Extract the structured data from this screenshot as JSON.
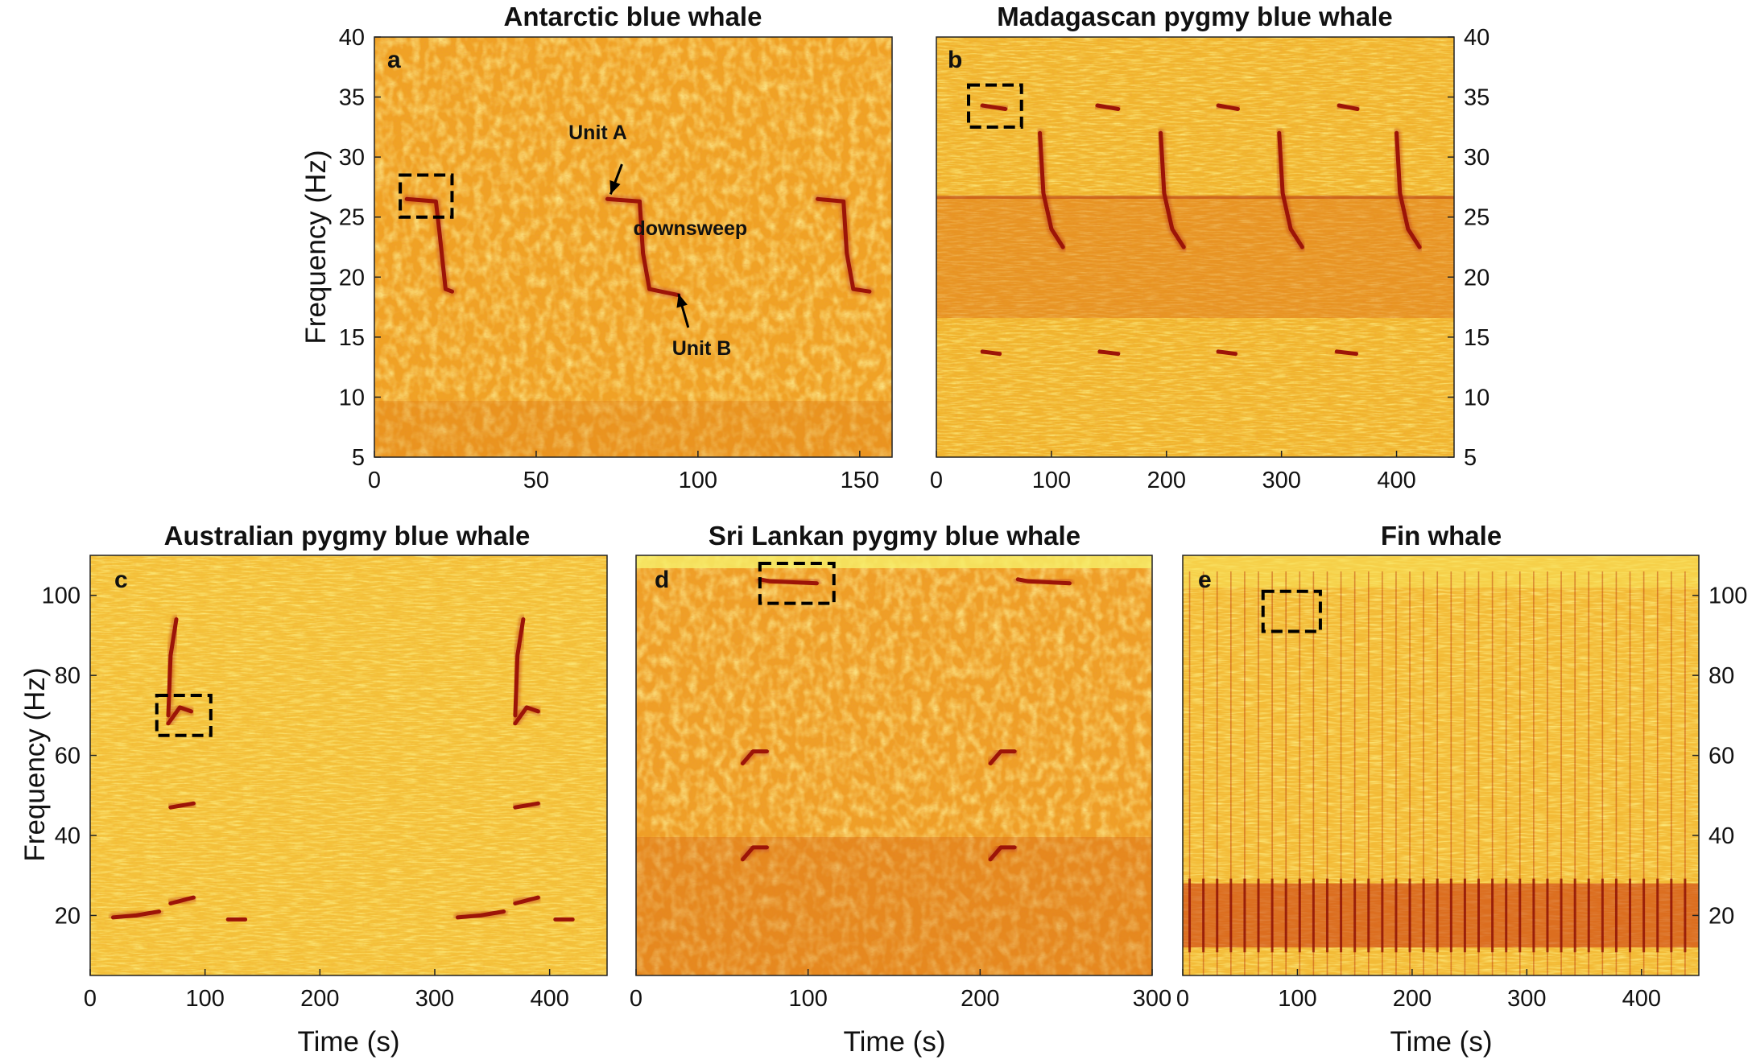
{
  "chart_data": [
    {
      "id": "a",
      "type": "heatmap",
      "panel_label": "a",
      "title": "Antarctic blue whale",
      "xlabel": "",
      "ylabel": "Frequency (Hz)",
      "xlim": [
        0,
        160
      ],
      "ylim": [
        5,
        40
      ],
      "xticks": [
        0,
        50,
        100,
        150
      ],
      "yticks": [
        5,
        10,
        15,
        20,
        25,
        30,
        35,
        40
      ],
      "y_axis_side": "left",
      "calls": [
        {
          "points": [
            [
              10,
              26.5
            ],
            [
              19,
              26.3
            ],
            [
              20,
              24
            ],
            [
              22,
              19
            ],
            [
              24,
              18.8
            ]
          ]
        },
        {
          "points": [
            [
              72,
              26.5
            ],
            [
              82,
              26.3
            ],
            [
              83,
              22
            ],
            [
              85,
              19
            ],
            [
              94,
              18.5
            ]
          ]
        },
        {
          "points": [
            [
              137,
              26.5
            ],
            [
              145,
              26.3
            ],
            [
              146,
              22
            ],
            [
              148,
              19
            ],
            [
              153,
              18.8
            ]
          ]
        }
      ],
      "boxes": [
        {
          "x": [
            8,
            24
          ],
          "y": [
            25,
            28.5
          ]
        }
      ],
      "annotations": [
        {
          "text": "Unit A",
          "x": 60,
          "y": 31.5
        },
        {
          "text": "downsweep",
          "x": 80,
          "y": 23.5
        },
        {
          "text": "Unit B",
          "x": 92,
          "y": 13.5
        }
      ]
    },
    {
      "id": "b",
      "type": "heatmap",
      "panel_label": "b",
      "title": "Madagascan pygmy blue whale",
      "xlabel": "",
      "ylabel": "",
      "xlim": [
        0,
        450
      ],
      "ylim": [
        5,
        40
      ],
      "xticks": [
        0,
        100,
        200,
        300,
        400
      ],
      "yticks": [
        5,
        10,
        15,
        20,
        25,
        30,
        35,
        40
      ],
      "y_axis_side": "right",
      "calls": [
        {
          "points": [
            [
              40,
              34.3
            ],
            [
              60,
              34
            ]
          ]
        },
        {
          "points": [
            [
              140,
              34.3
            ],
            [
              158,
              34
            ]
          ]
        },
        {
          "points": [
            [
              245,
              34.3
            ],
            [
              262,
              34
            ]
          ]
        },
        {
          "points": [
            [
              350,
              34.3
            ],
            [
              366,
              34
            ]
          ]
        },
        {
          "points": [
            [
              90,
              32
            ],
            [
              93,
              27
            ],
            [
              100,
              24
            ],
            [
              110,
              22.5
            ]
          ]
        },
        {
          "points": [
            [
              195,
              32
            ],
            [
              198,
              27
            ],
            [
              205,
              24
            ],
            [
              215,
              22.5
            ]
          ]
        },
        {
          "points": [
            [
              298,
              32
            ],
            [
              301,
              27
            ],
            [
              308,
              24
            ],
            [
              318,
              22.5
            ]
          ]
        },
        {
          "points": [
            [
              400,
              32
            ],
            [
              403,
              27
            ],
            [
              410,
              24
            ],
            [
              420,
              22.5
            ]
          ]
        },
        {
          "points": [
            [
              40,
              13.8
            ],
            [
              55,
              13.6
            ]
          ]
        },
        {
          "points": [
            [
              142,
              13.8
            ],
            [
              158,
              13.6
            ]
          ]
        },
        {
          "points": [
            [
              245,
              13.8
            ],
            [
              260,
              13.6
            ]
          ]
        },
        {
          "points": [
            [
              348,
              13.8
            ],
            [
              365,
              13.6
            ]
          ]
        }
      ],
      "boxes": [
        {
          "x": [
            28,
            74
          ],
          "y": [
            32.5,
            36
          ]
        }
      ]
    },
    {
      "id": "c",
      "type": "heatmap",
      "panel_label": "c",
      "title": "Australian pygmy blue whale",
      "xlabel": "Time (s)",
      "ylabel": "Frequency (Hz)",
      "xlim": [
        0,
        450
      ],
      "ylim": [
        5,
        110
      ],
      "xticks": [
        0,
        100,
        200,
        300,
        400
      ],
      "yticks": [
        20,
        40,
        60,
        80,
        100
      ],
      "y_axis_side": "left",
      "calls": [
        {
          "points": [
            [
              20,
              19.5
            ],
            [
              40,
              20
            ],
            [
              60,
              21
            ]
          ]
        },
        {
          "points": [
            [
              70,
              23
            ],
            [
              90,
              24.5
            ]
          ]
        },
        {
          "points": [
            [
              120,
              19
            ],
            [
              135,
              19
            ]
          ]
        },
        {
          "points": [
            [
              70,
              47
            ],
            [
              90,
              48
            ]
          ]
        },
        {
          "points": [
            [
              68,
              68
            ],
            [
              78,
              72
            ],
            [
              88,
              71
            ]
          ]
        },
        {
          "points": [
            [
              68,
              70
            ],
            [
              70,
              85
            ],
            [
              75,
              94
            ]
          ]
        },
        {
          "points": [
            [
              320,
              19.5
            ],
            [
              340,
              20
            ],
            [
              360,
              21
            ]
          ]
        },
        {
          "points": [
            [
              370,
              23
            ],
            [
              390,
              24.5
            ]
          ]
        },
        {
          "points": [
            [
              405,
              19
            ],
            [
              420,
              19
            ]
          ]
        },
        {
          "points": [
            [
              370,
              47
            ],
            [
              390,
              48
            ]
          ]
        },
        {
          "points": [
            [
              370,
              68
            ],
            [
              380,
              72
            ],
            [
              390,
              71
            ]
          ]
        },
        {
          "points": [
            [
              370,
              70
            ],
            [
              372,
              85
            ],
            [
              377,
              94
            ]
          ]
        }
      ],
      "boxes": [
        {
          "x": [
            58,
            105
          ],
          "y": [
            65,
            75
          ]
        }
      ]
    },
    {
      "id": "d",
      "type": "heatmap",
      "panel_label": "d",
      "title": "Sri Lankan pygmy blue whale",
      "xlabel": "Time (s)",
      "ylabel": "",
      "xlim": [
        0,
        300
      ],
      "ylim": [
        5,
        110
      ],
      "xticks": [
        0,
        100,
        200,
        300
      ],
      "yticks": [
        20,
        40,
        60,
        80,
        100
      ],
      "y_axis_side": "none",
      "calls": [
        {
          "points": [
            [
              72,
              104
            ],
            [
              78,
              103.5
            ],
            [
              105,
              103
            ]
          ]
        },
        {
          "points": [
            [
              222,
              104
            ],
            [
              228,
              103.5
            ],
            [
              252,
              103
            ]
          ]
        },
        {
          "points": [
            [
              62,
              58
            ],
            [
              68,
              61
            ],
            [
              76,
              61
            ]
          ]
        },
        {
          "points": [
            [
              206,
              58
            ],
            [
              212,
              61
            ],
            [
              220,
              61
            ]
          ]
        },
        {
          "points": [
            [
              62,
              34
            ],
            [
              68,
              37
            ],
            [
              76,
              37
            ]
          ]
        },
        {
          "points": [
            [
              206,
              34
            ],
            [
              212,
              37
            ],
            [
              220,
              37
            ]
          ]
        }
      ],
      "boxes": [
        {
          "x": [
            72,
            115
          ],
          "y": [
            98,
            108
          ]
        }
      ]
    },
    {
      "id": "e",
      "type": "heatmap",
      "panel_label": "e",
      "title": "Fin whale",
      "xlabel": "Time (s)",
      "ylabel": "",
      "xlim": [
        0,
        450
      ],
      "ylim": [
        5,
        110
      ],
      "xticks": [
        0,
        100,
        200,
        300,
        400
      ],
      "yticks": [
        20,
        40,
        60,
        80,
        100
      ],
      "y_axis_side": "right",
      "calls": [],
      "pulse_interval_s": 12,
      "band_hz": [
        12,
        28
      ],
      "boxes": [
        {
          "x": [
            70,
            120
          ],
          "y": [
            91,
            101
          ]
        }
      ]
    }
  ]
}
